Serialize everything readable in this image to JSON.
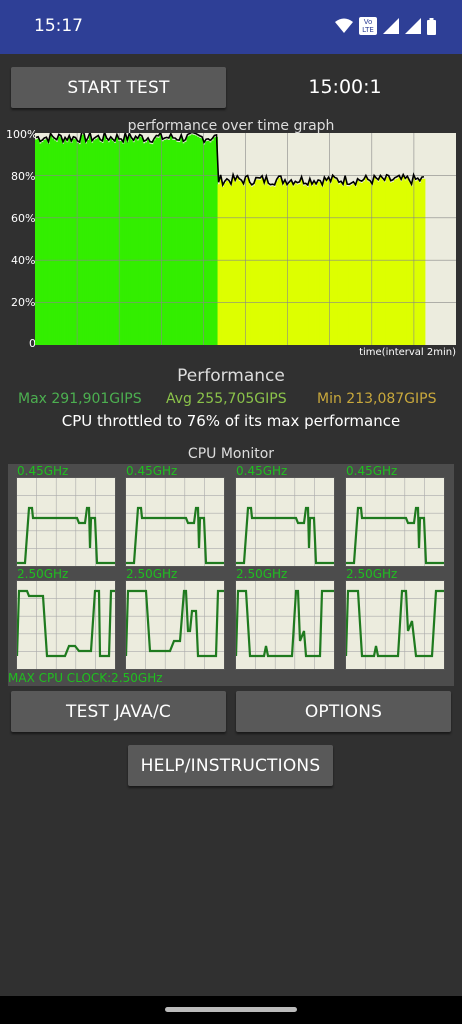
{
  "status_bar": {
    "time": "15:17",
    "volte_badge": "Vo LTE",
    "icons": [
      "wifi-icon",
      "signal-icon",
      "signal-icon",
      "battery-icon"
    ]
  },
  "controls": {
    "start_test_label": "START TEST",
    "timer": "15:00:1",
    "test_java_label": "TEST JAVA/C",
    "options_label": "OPTIONS",
    "help_label": "HELP/INSTRUCTIONS"
  },
  "chart_data": {
    "type": "bar",
    "title": "performance over time graph",
    "xlabel": "time(interval 2min)",
    "ylabel": "",
    "y_tick_labels": [
      "100%",
      "80%",
      "60%",
      "40%",
      "20%",
      "0"
    ],
    "ylim": [
      0,
      100
    ],
    "grid": true,
    "phases": [
      {
        "name": "",
        "color": "#33ee00",
        "samples": 88,
        "level": 97
      },
      {
        "name": "",
        "color": "#ddff00",
        "samples": 100,
        "level": 77
      }
    ],
    "line_color": "#000000",
    "avg_line_color": "#3344ff"
  },
  "performance": {
    "title": "Performance",
    "max": "Max 291,901GIPS",
    "avg": "Avg 255,705GIPS",
    "min": "Min 213,087GIPS",
    "throttle_text": "CPU throttled to 76% of its max performance",
    "colors": {
      "max": "#4caf50",
      "avg": "#8bc34a",
      "min": "#c8a83c"
    }
  },
  "cpu_monitor": {
    "title": "CPU Monitor",
    "cores": [
      {
        "freq": "0.45GHz"
      },
      {
        "freq": "0.45GHz"
      },
      {
        "freq": "0.45GHz"
      },
      {
        "freq": "0.45GHz"
      },
      {
        "freq": "2.50GHz"
      },
      {
        "freq": "2.50GHz"
      },
      {
        "freq": "2.50GHz"
      },
      {
        "freq": "2.50GHz"
      }
    ],
    "max_clock": "MAX CPU CLOCK:2.50GHz",
    "line_color": "#1f7a1f"
  }
}
